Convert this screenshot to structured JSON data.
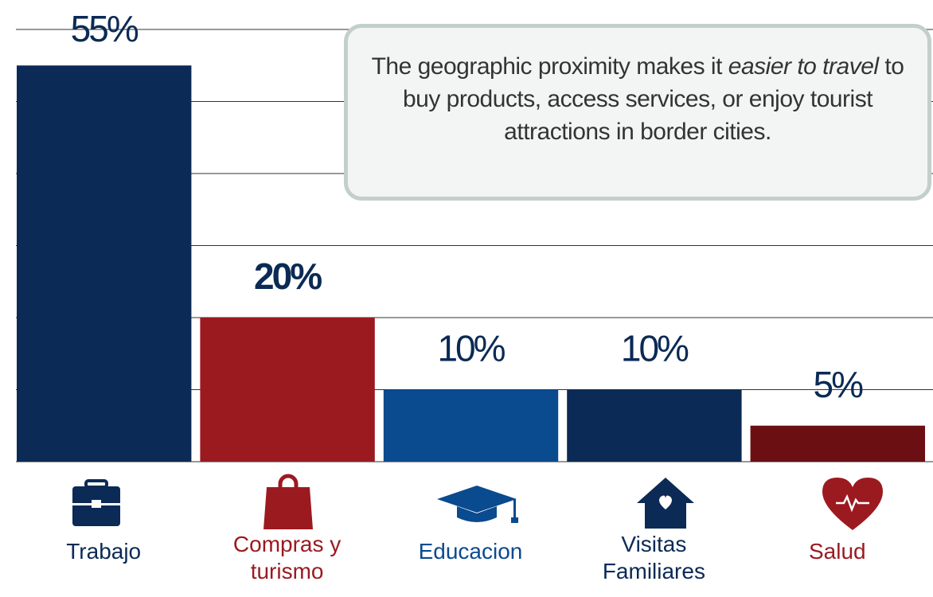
{
  "chart_data": {
    "type": "bar",
    "categories": [
      "Trabajo",
      "Compras y turismo",
      "Educacion",
      "Visitas Familiares",
      "Salud"
    ],
    "values": [
      55,
      20,
      10,
      10,
      5
    ],
    "value_labels": [
      "55%",
      "20%",
      "10%",
      "10%",
      "5%"
    ],
    "value_label_bold": [
      false,
      true,
      false,
      false,
      false
    ],
    "colors": [
      "#0b2a55",
      "#9b1a20",
      "#0a4a8f",
      "#0b2a55",
      "#6b0f12"
    ],
    "label_colors": [
      "#0b2a55",
      "#9b1a20",
      "#0a4a8f",
      "#0b2a55",
      "#9b1a20"
    ],
    "ylim": [
      0,
      60
    ],
    "yticks": [
      0,
      10,
      20,
      30,
      40,
      50,
      60
    ],
    "grid": true,
    "annotation": {
      "before": "The geographic proximity makes it ",
      "italic": "easier to travel",
      "after": " to buy products, access services, or enjoy tourist attractions in border cities."
    }
  }
}
